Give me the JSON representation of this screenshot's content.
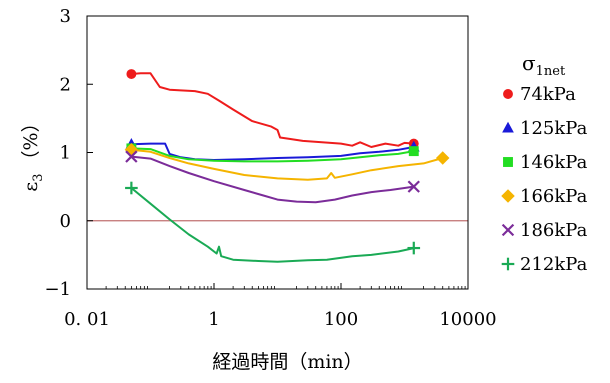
{
  "chart_data": {
    "type": "line",
    "xlabel": "経過時間（min）",
    "ylabel": "ε",
    "ylabel_sub": "3",
    "ylabel_unit": "（%）",
    "x_scale": "log",
    "xlim": [
      0.01,
      10000
    ],
    "ylim": [
      -1,
      3
    ],
    "x_ticks": [
      0.01,
      1,
      100,
      10000
    ],
    "x_tick_labels": [
      "0. 01",
      "1",
      "100",
      "10000"
    ],
    "y_ticks": [
      -1,
      0,
      1,
      2,
      3
    ],
    "y_tick_labels": [
      "−1",
      "0",
      "1",
      "2",
      "3"
    ],
    "zero_line_color": "#c07070",
    "legend": {
      "title": "σ",
      "title_sub": "1net",
      "placement": "right"
    },
    "series": [
      {
        "name": "74kPa",
        "color": "#ee1c1c",
        "marker": "circle",
        "points": [
          [
            0.05,
            2.15
          ],
          [
            0.07,
            2.16
          ],
          [
            0.1,
            2.16
          ],
          [
            0.14,
            1.96
          ],
          [
            0.2,
            1.92
          ],
          [
            0.3,
            1.91
          ],
          [
            0.5,
            1.9
          ],
          [
            0.8,
            1.86
          ],
          [
            1.2,
            1.76
          ],
          [
            2,
            1.63
          ],
          [
            4,
            1.46
          ],
          [
            8,
            1.38
          ],
          [
            10,
            1.33
          ],
          [
            11,
            1.22
          ],
          [
            15,
            1.2
          ],
          [
            25,
            1.17
          ],
          [
            50,
            1.15
          ],
          [
            100,
            1.13
          ],
          [
            150,
            1.1
          ],
          [
            200,
            1.15
          ],
          [
            300,
            1.08
          ],
          [
            500,
            1.13
          ],
          [
            800,
            1.1
          ],
          [
            1000,
            1.14
          ],
          [
            1400,
            1.13
          ]
        ],
        "marker_points": [
          [
            0.05,
            2.15
          ],
          [
            1400,
            1.13
          ]
        ]
      },
      {
        "name": "125kPa",
        "color": "#1a1ad8",
        "marker": "triangle",
        "points": [
          [
            0.05,
            1.12
          ],
          [
            0.1,
            1.13
          ],
          [
            0.17,
            1.13
          ],
          [
            0.2,
            0.98
          ],
          [
            0.3,
            0.93
          ],
          [
            0.5,
            0.9
          ],
          [
            1,
            0.89
          ],
          [
            3,
            0.9
          ],
          [
            10,
            0.92
          ],
          [
            30,
            0.93
          ],
          [
            100,
            0.95
          ],
          [
            200,
            0.99
          ],
          [
            400,
            1.01
          ],
          [
            800,
            1.04
          ],
          [
            1400,
            1.08
          ]
        ],
        "marker_points": [
          [
            0.05,
            1.12
          ],
          [
            1400,
            1.08
          ]
        ]
      },
      {
        "name": "146kPa",
        "color": "#22dd22",
        "marker": "square",
        "points": [
          [
            0.05,
            1.06
          ],
          [
            0.1,
            1.05
          ],
          [
            0.2,
            0.95
          ],
          [
            0.4,
            0.9
          ],
          [
            1,
            0.88
          ],
          [
            3,
            0.87
          ],
          [
            10,
            0.87
          ],
          [
            30,
            0.88
          ],
          [
            100,
            0.9
          ],
          [
            200,
            0.93
          ],
          [
            400,
            0.96
          ],
          [
            800,
            0.98
          ],
          [
            1400,
            1.02
          ]
        ],
        "marker_points": [
          [
            0.05,
            1.06
          ],
          [
            1400,
            1.02
          ]
        ]
      },
      {
        "name": "166kPa",
        "color": "#f5b400",
        "marker": "diamond",
        "points": [
          [
            0.05,
            1.04
          ],
          [
            0.1,
            1.01
          ],
          [
            0.2,
            0.92
          ],
          [
            0.4,
            0.84
          ],
          [
            1,
            0.76
          ],
          [
            3,
            0.67
          ],
          [
            10,
            0.62
          ],
          [
            30,
            0.6
          ],
          [
            60,
            0.62
          ],
          [
            70,
            0.7
          ],
          [
            80,
            0.63
          ],
          [
            150,
            0.68
          ],
          [
            300,
            0.74
          ],
          [
            800,
            0.8
          ],
          [
            2000,
            0.84
          ],
          [
            4000,
            0.92
          ]
        ],
        "marker_points": [
          [
            0.05,
            1.04
          ],
          [
            4000,
            0.92
          ]
        ]
      },
      {
        "name": "186kPa",
        "color": "#7b2c99",
        "marker": "x",
        "points": [
          [
            0.05,
            0.94
          ],
          [
            0.1,
            0.91
          ],
          [
            0.2,
            0.8
          ],
          [
            0.4,
            0.7
          ],
          [
            1,
            0.58
          ],
          [
            3,
            0.45
          ],
          [
            6,
            0.37
          ],
          [
            10,
            0.31
          ],
          [
            20,
            0.28
          ],
          [
            40,
            0.27
          ],
          [
            80,
            0.31
          ],
          [
            150,
            0.37
          ],
          [
            300,
            0.42
          ],
          [
            600,
            0.45
          ],
          [
            1000,
            0.48
          ],
          [
            1400,
            0.5
          ]
        ],
        "marker_points": [
          [
            0.05,
            0.94
          ],
          [
            1400,
            0.5
          ]
        ]
      },
      {
        "name": "212kPa",
        "color": "#1aaa55",
        "marker": "plus",
        "points": [
          [
            0.05,
            0.48
          ],
          [
            0.1,
            0.25
          ],
          [
            0.2,
            0.02
          ],
          [
            0.4,
            -0.2
          ],
          [
            0.8,
            -0.38
          ],
          [
            1.1,
            -0.48
          ],
          [
            1.2,
            -0.38
          ],
          [
            1.3,
            -0.52
          ],
          [
            2,
            -0.57
          ],
          [
            5,
            -0.59
          ],
          [
            10,
            -0.6
          ],
          [
            30,
            -0.58
          ],
          [
            60,
            -0.57
          ],
          [
            150,
            -0.52
          ],
          [
            300,
            -0.5
          ],
          [
            800,
            -0.45
          ],
          [
            1400,
            -0.4
          ]
        ],
        "marker_points": [
          [
            0.05,
            0.48
          ],
          [
            1400,
            -0.4
          ]
        ]
      }
    ]
  }
}
